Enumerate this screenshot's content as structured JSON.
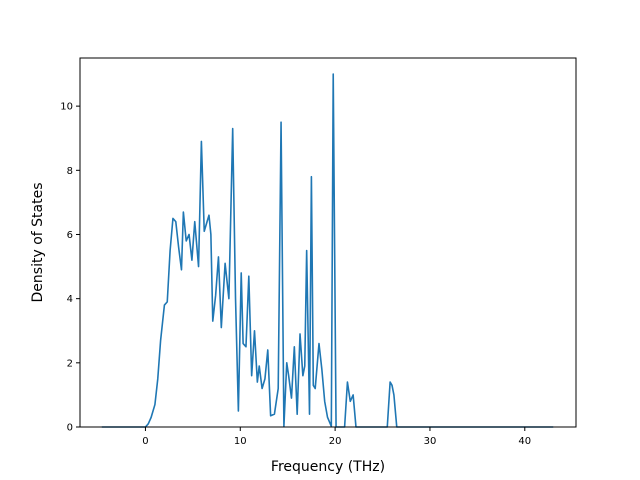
{
  "chart_data": {
    "type": "line",
    "title": "",
    "xlabel": "Frequency (THz)",
    "ylabel": "Density of States",
    "xlim": [
      -6.9,
      45.4
    ],
    "ylim": [
      0,
      11.5
    ],
    "xticks": [
      0,
      10,
      20,
      30,
      40
    ],
    "yticks": [
      0,
      2,
      4,
      6,
      8,
      10
    ],
    "grid": false,
    "legend": "none",
    "series": [
      {
        "color": "#1f77b4",
        "x": [
          -4.6,
          -3,
          -1,
          0,
          0.3,
          0.6,
          1.0,
          1.3,
          1.6,
          2.0,
          2.3,
          2.6,
          2.9,
          3.2,
          3.5,
          3.8,
          4.0,
          4.3,
          4.6,
          4.9,
          5.2,
          5.6,
          5.9,
          6.2,
          6.5,
          6.7,
          6.9,
          7.1,
          7.4,
          7.7,
          8.0,
          8.4,
          8.8,
          9.2,
          9.5,
          9.8,
          10.1,
          10.3,
          10.6,
          10.9,
          11.2,
          11.5,
          11.8,
          12.0,
          12.3,
          12.6,
          12.9,
          13.2,
          13.6,
          14.0,
          14.3,
          14.6,
          14.9,
          15.1,
          15.4,
          15.7,
          16.0,
          16.3,
          16.6,
          16.8,
          17.0,
          17.3,
          17.5,
          17.7,
          17.9,
          18.3,
          18.6,
          18.9,
          19.2,
          19.6,
          19.8,
          20.1,
          20.4,
          20.7,
          21.0,
          21.3,
          21.6,
          21.9,
          22.2,
          22.5,
          22.8,
          23.2,
          25.5,
          25.8,
          26.0,
          26.2,
          26.5,
          26.8,
          27.5,
          30,
          35,
          40,
          43.0
        ],
        "y": [
          0,
          0,
          0,
          0,
          0.1,
          0.3,
          0.7,
          1.5,
          2.7,
          3.8,
          3.9,
          5.5,
          6.5,
          6.4,
          5.6,
          4.9,
          6.7,
          5.8,
          6.0,
          5.2,
          6.4,
          5.0,
          8.9,
          6.1,
          6.4,
          6.6,
          6.0,
          3.3,
          4.1,
          5.3,
          3.1,
          5.1,
          4.0,
          9.3,
          4.0,
          0.5,
          4.8,
          2.6,
          2.5,
          4.7,
          1.6,
          3.0,
          1.4,
          1.9,
          1.2,
          1.5,
          2.4,
          0.35,
          0.4,
          1.2,
          9.5,
          0.02,
          2.0,
          1.6,
          0.9,
          2.5,
          0.4,
          2.9,
          1.6,
          1.9,
          5.5,
          0.4,
          7.8,
          1.3,
          1.2,
          2.6,
          1.8,
          0.8,
          0.3,
          0.02,
          11.0,
          0,
          0,
          0,
          0,
          1.4,
          0.8,
          1.0,
          0,
          0,
          0,
          0,
          0,
          1.4,
          1.3,
          1.0,
          0,
          0,
          0,
          0,
          0,
          0,
          0
        ]
      }
    ]
  }
}
